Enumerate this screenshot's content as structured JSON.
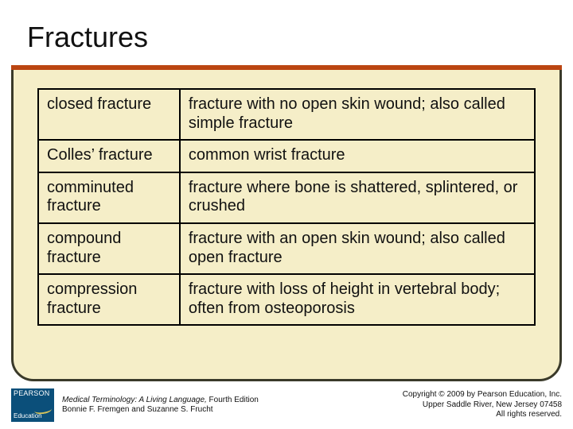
{
  "colors": {
    "slide_bg": "#f5eec8",
    "title_underline": "#bb4511",
    "frame_border": "#3a3a2a",
    "logo_bg": "#0b4f7a",
    "logo_swoosh": "#d6c35a",
    "text": "#111111",
    "table_border": "#000000"
  },
  "title": "Fractures",
  "table": {
    "rows": [
      {
        "term": "closed fracture",
        "definition": "fracture with no open skin wound; also called simple fracture"
      },
      {
        "term": "Colles’ fracture",
        "definition": "common wrist fracture"
      },
      {
        "term": "comminuted fracture",
        "definition": "fracture where bone is shattered, splintered, or crushed"
      },
      {
        "term": "compound fracture",
        "definition": "fracture with an open skin wound; also called open fracture"
      },
      {
        "term": "compression fracture",
        "definition": "fracture with loss of height in vertebral body; often from osteoporosis"
      }
    ]
  },
  "footer": {
    "logo": {
      "brand": "PEARSON",
      "sub": "Education"
    },
    "citation": {
      "book_title": "Medical Terminology: A Living Language,",
      "edition": " Fourth Edition",
      "authors": "Bonnie F. Fremgen and Suzanne S. Frucht"
    },
    "copyright": {
      "line1": "Copyright © 2009 by Pearson Education, Inc.",
      "line2": "Upper Saddle River, New Jersey 07458",
      "line3": "All rights reserved."
    }
  }
}
